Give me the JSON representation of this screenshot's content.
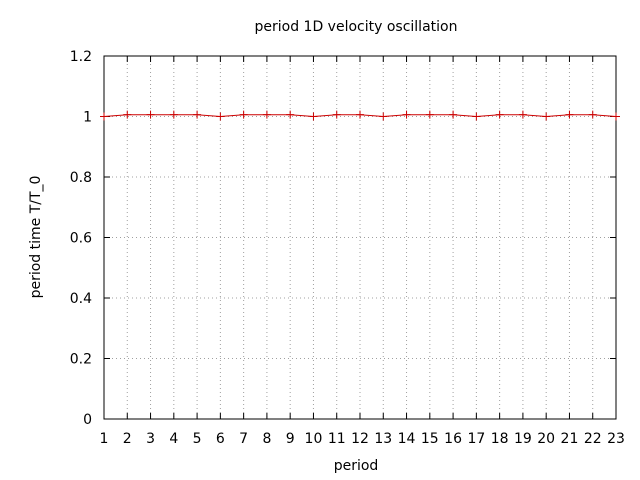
{
  "chart_data": {
    "type": "line",
    "title": "period 1D velocity oscillation",
    "xlabel": "period",
    "ylabel": "period time T/T_0",
    "xlim": [
      1,
      23
    ],
    "ylim": [
      0,
      1.2
    ],
    "x_ticks": [
      1,
      2,
      3,
      4,
      5,
      6,
      7,
      8,
      9,
      10,
      11,
      12,
      13,
      14,
      15,
      16,
      17,
      18,
      19,
      20,
      21,
      22,
      23
    ],
    "y_ticks": [
      0,
      0.2,
      0.4,
      0.6,
      0.8,
      1,
      1.2
    ],
    "y_tick_labels": [
      "0",
      "0.2",
      "0.4",
      "0.6",
      "0.8",
      "1",
      "1.2"
    ],
    "grid": true,
    "series": [
      {
        "color": "#cc0000",
        "x": [
          1,
          2,
          3,
          4,
          5,
          6,
          7,
          8,
          9,
          10,
          11,
          12,
          13,
          14,
          15,
          16,
          17,
          18,
          19,
          20,
          21,
          22,
          23
        ],
        "y": [
          1.0,
          1.006,
          1.006,
          1.006,
          1.006,
          1.0,
          1.006,
          1.006,
          1.006,
          1.0,
          1.006,
          1.006,
          1.0,
          1.006,
          1.006,
          1.006,
          1.0,
          1.006,
          1.006,
          1.0,
          1.006,
          1.006,
          1.0
        ]
      }
    ]
  }
}
